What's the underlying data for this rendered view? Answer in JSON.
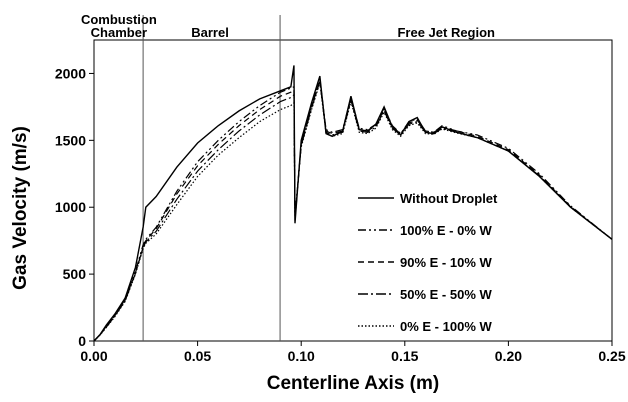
{
  "chart_data": {
    "type": "line",
    "xlabel": "Centerline Axis (m)",
    "ylabel": "Gas Velocity (m/s)",
    "regions": [
      {
        "lines": [
          "Combustion",
          "Chamber"
        ],
        "x": 0.012
      },
      {
        "lines": [
          "Barrel"
        ],
        "x": 0.056
      },
      {
        "lines": [
          "Free Jet Region"
        ],
        "x": 0.17
      }
    ],
    "dividers": [
      0.0237,
      0.0898
    ],
    "x": [
      0,
      0.003,
      0.006,
      0.01,
      0.015,
      0.02,
      0.0237,
      0.025,
      0.03,
      0.04,
      0.05,
      0.06,
      0.07,
      0.08,
      0.09,
      0.095,
      0.0965,
      0.097,
      0.1,
      0.105,
      0.109,
      0.112,
      0.115,
      0.12,
      0.124,
      0.128,
      0.132,
      0.136,
      0.14,
      0.144,
      0.148,
      0.152,
      0.156,
      0.16,
      0.164,
      0.168,
      0.175,
      0.185,
      0.2,
      0.215,
      0.23,
      0.25
    ],
    "series": [
      {
        "name": "Without Droplet",
        "color": "#000000",
        "dash": "",
        "values": [
          0,
          50,
          120,
          200,
          320,
          550,
          850,
          1000,
          1080,
          1300,
          1480,
          1610,
          1720,
          1810,
          1870,
          1900,
          2060,
          880,
          1500,
          1780,
          1980,
          1550,
          1530,
          1570,
          1830,
          1580,
          1570,
          1620,
          1750,
          1600,
          1540,
          1640,
          1670,
          1560,
          1550,
          1600,
          1560,
          1520,
          1420,
          1230,
          1000,
          760
        ]
      },
      {
        "name": "100% E - 0% W",
        "color": "#000000",
        "dash": "8 3 2 3 2 3",
        "values": [
          0,
          50,
          110,
          190,
          310,
          520,
          720,
          760,
          850,
          1120,
          1340,
          1500,
          1640,
          1760,
          1860,
          1890,
          1900,
          900,
          1480,
          1760,
          1960,
          1580,
          1560,
          1580,
          1820,
          1590,
          1580,
          1620,
          1740,
          1610,
          1550,
          1640,
          1660,
          1570,
          1560,
          1610,
          1570,
          1540,
          1440,
          1250,
          1010,
          760
        ]
      },
      {
        "name": "90% E - 10% W",
        "color": "#000000",
        "dash": "6 4",
        "values": [
          0,
          48,
          108,
          188,
          305,
          510,
          700,
          750,
          840,
          1100,
          1310,
          1470,
          1610,
          1730,
          1830,
          1860,
          1880,
          920,
          1470,
          1750,
          1950,
          1570,
          1550,
          1570,
          1810,
          1580,
          1570,
          1610,
          1730,
          1600,
          1550,
          1630,
          1650,
          1570,
          1560,
          1600,
          1570,
          1530,
          1430,
          1240,
          1005,
          760
        ]
      },
      {
        "name": "50% E - 50% W",
        "color": "#000000",
        "dash": "10 3 2 3",
        "values": [
          0,
          47,
          105,
          185,
          300,
          505,
          700,
          740,
          820,
          1060,
          1270,
          1430,
          1570,
          1690,
          1790,
          1820,
          1840,
          930,
          1460,
          1740,
          1940,
          1560,
          1540,
          1560,
          1800,
          1570,
          1560,
          1600,
          1720,
          1590,
          1540,
          1620,
          1640,
          1560,
          1550,
          1590,
          1560,
          1520,
          1420,
          1235,
          1000,
          760
        ]
      },
      {
        "name": "0% E - 100% W",
        "color": "#000000",
        "dash": "1.5 2",
        "values": [
          0,
          46,
          102,
          180,
          295,
          500,
          690,
          730,
          800,
          1020,
          1230,
          1390,
          1520,
          1640,
          1730,
          1760,
          1780,
          940,
          1450,
          1730,
          1930,
          1550,
          1530,
          1550,
          1790,
          1560,
          1550,
          1590,
          1710,
          1580,
          1530,
          1610,
          1630,
          1550,
          1545,
          1585,
          1555,
          1520,
          1420,
          1230,
          1000,
          760
        ]
      }
    ],
    "xlim": [
      0,
      0.25
    ],
    "ylim": [
      0,
      2250
    ],
    "xticks": [
      {
        "value": 0,
        "label": "0.00"
      },
      {
        "value": 0.05,
        "label": "0.05"
      },
      {
        "value": 0.1,
        "label": "0.10"
      },
      {
        "value": 0.15,
        "label": "0.15"
      },
      {
        "value": 0.2,
        "label": "0.20"
      },
      {
        "value": 0.25,
        "label": "0.25"
      }
    ],
    "yticks": [
      0,
      500,
      1000,
      1500,
      2000
    ],
    "legend": "right"
  }
}
